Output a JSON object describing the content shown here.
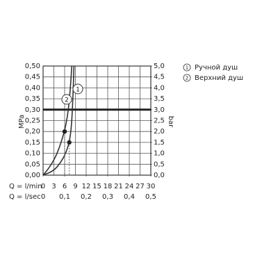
{
  "chart_data": {
    "type": "line",
    "x_label": "Q = l/min",
    "x2_label": "Q = l/sec",
    "y_label": "MPa",
    "y2_label": "bar",
    "xlim": [
      0,
      30
    ],
    "xticks": [
      0,
      3,
      6,
      9,
      12,
      15,
      18,
      21,
      24,
      27,
      30
    ],
    "x2lim": [
      0,
      0.5
    ],
    "x2ticks": [
      0,
      {
        "value": 0.1,
        "label": "0,1"
      },
      {
        "value": 0.2,
        "label": "0,2"
      },
      {
        "value": 0.3,
        "label": "0,3"
      },
      {
        "value": 0.4,
        "label": "0,4"
      },
      {
        "value": 0.5,
        "label": "0,5"
      }
    ],
    "ylim": [
      0,
      0.5
    ],
    "yticks": [
      {
        "value": 0,
        "label": "0,00"
      },
      {
        "value": 0.05,
        "label": "0,05"
      },
      {
        "value": 0.1,
        "label": "0,10"
      },
      {
        "value": 0.15,
        "label": "0,15"
      },
      {
        "value": 0.2,
        "label": "0,20"
      },
      {
        "value": 0.25,
        "label": "0,25"
      },
      {
        "value": 0.3,
        "label": "0,30"
      },
      {
        "value": 0.35,
        "label": "0,35"
      },
      {
        "value": 0.4,
        "label": "0,40"
      },
      {
        "value": 0.45,
        "label": "0,45"
      },
      {
        "value": 0.5,
        "label": "0,50"
      }
    ],
    "y2lim": [
      0,
      5
    ],
    "y2ticks": [
      {
        "value": 0,
        "label": "0,0"
      },
      {
        "value": 0.5,
        "label": "0,5"
      },
      {
        "value": 1,
        "label": "1,0"
      },
      {
        "value": 1.5,
        "label": "1,5"
      },
      {
        "value": 2,
        "label": "2,0"
      },
      {
        "value": 2.5,
        "label": "2,5"
      },
      {
        "value": 3,
        "label": "3,0"
      },
      {
        "value": 3.5,
        "label": "3,5"
      },
      {
        "value": 4,
        "label": "4,0"
      },
      {
        "value": 4.5,
        "label": "4,5"
      },
      {
        "value": 5,
        "label": "5,0"
      }
    ],
    "grid": true,
    "hline": 0.3,
    "series": [
      {
        "name": "Ручной душ",
        "label": "1",
        "color": "#333333",
        "x": [
          0,
          3,
          5,
          6.3,
          7.3,
          7.9,
          8.3,
          8.6
        ],
        "values": [
          0,
          0.02,
          0.06,
          0.1,
          0.15,
          0.22,
          0.35,
          0.5
        ],
        "marker": {
          "x": 7.3,
          "y": 0.15
        }
      },
      {
        "name": "Верхний душ",
        "label": "2",
        "color": "#333333",
        "x": [
          0,
          2,
          4,
          6,
          7,
          7.6,
          8.0
        ],
        "values": [
          0,
          0.04,
          0.1,
          0.2,
          0.29,
          0.4,
          0.5
        ],
        "marker": {
          "x": 6,
          "y": 0.2
        }
      }
    ]
  }
}
